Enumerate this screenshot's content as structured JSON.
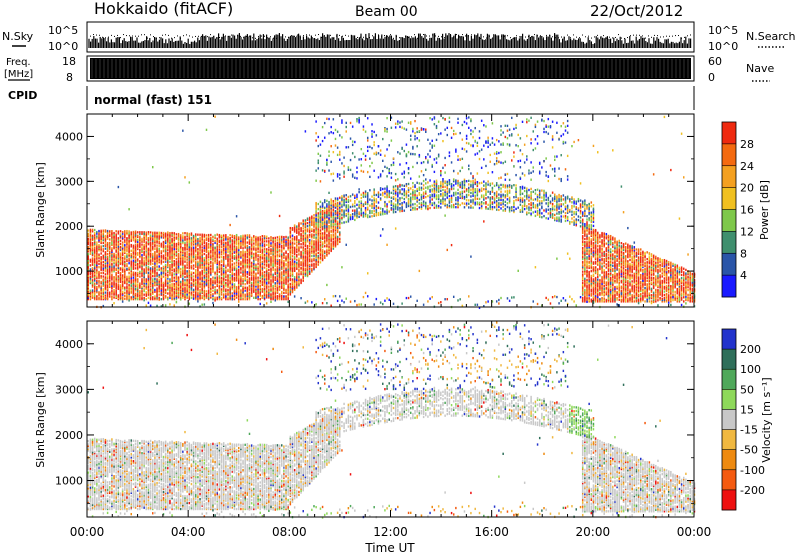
{
  "header": {
    "station": "Hokkaido (fitACF)",
    "beam": "Beam 00",
    "date": "22/Oct/2012"
  },
  "strip_labels": {
    "nsky": "N.Sky",
    "nsky_top": "10^5",
    "nsky_bottom": "10^0",
    "nsearch": "N.Search",
    "nsearch_top": "10^5",
    "nsearch_bottom": "10^0",
    "freq_line1": "Freq.",
    "freq_line2": "[MHz]",
    "freq_top": "18",
    "freq_bottom": "8",
    "nave": "Nave",
    "nave_top": "60",
    "nave_bottom": "0",
    "cpid": "CPID",
    "mode": "normal (fast) 151"
  },
  "colors": {
    "power": [
      "#1a1aff",
      "#2a55a8",
      "#3f8f6e",
      "#7ec84a",
      "#f0c020",
      "#f4a020",
      "#f46a10",
      "#ef2a10"
    ],
    "velocity": [
      "#2233cc",
      "#2f6f5a",
      "#4fa85a",
      "#8ed85a",
      "#c8c8c8",
      "#f0b840",
      "#ee8a10",
      "#f45a10",
      "#ee1010"
    ]
  },
  "chart_data": [
    {
      "type": "heatmap",
      "panel": "power",
      "xlabel": "",
      "ylabel": "Slant Range [km]",
      "xlim": [
        0,
        24
      ],
      "ylim": [
        200,
        4500
      ],
      "y_ticks": [
        "1000",
        "2000",
        "3000",
        "4000"
      ],
      "colorbar": {
        "label": "Power [dB]",
        "ticks": [
          "4",
          "8",
          "12",
          "16",
          "20",
          "24",
          "28"
        ]
      }
    },
    {
      "type": "heatmap",
      "panel": "velocity",
      "xlabel": "Time UT",
      "ylabel": "Slant Range [km]",
      "xlim": [
        0,
        24
      ],
      "ylim": [
        200,
        4500
      ],
      "x_ticks": [
        "00:00",
        "04:00",
        "08:00",
        "12:00",
        "16:00",
        "20:00",
        "00:00"
      ],
      "y_ticks": [
        "1000",
        "2000",
        "3000",
        "4000"
      ],
      "colorbar": {
        "label": "Velocity [m s⁻¹]",
        "ticks": [
          "200",
          "100",
          "50",
          "15",
          "-15",
          "-50",
          "-100",
          "-200"
        ]
      }
    }
  ]
}
